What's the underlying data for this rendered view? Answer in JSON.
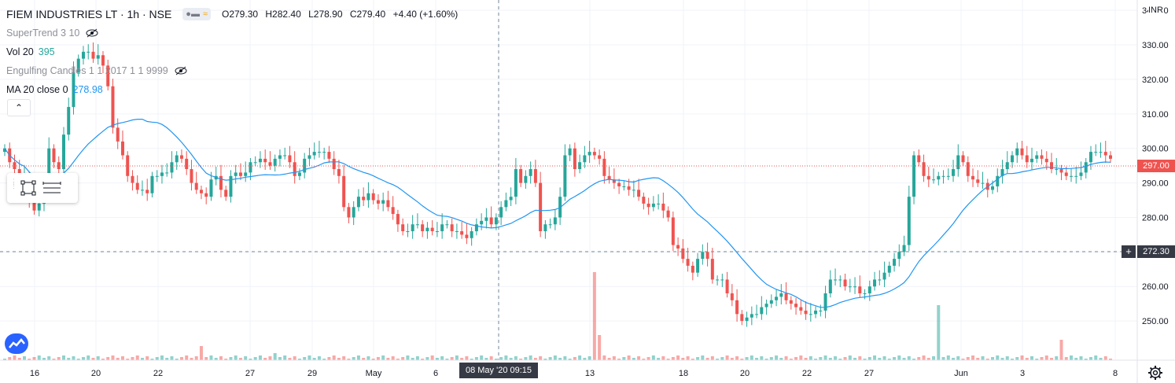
{
  "header": {
    "symbol": "FIEM INDUSTRIES LT · 1h · NSE",
    "open": "O279.30",
    "high": "H282.40",
    "low": "L278.90",
    "close": "C279.40",
    "change": "+4.40 (+1.60%)",
    "up_color": "#26a69a",
    "down_color": "#ef5350"
  },
  "indicators": [
    {
      "name": "SuperTrend 3 10",
      "value": "",
      "hidden": true
    },
    {
      "name": "Vol 20",
      "value": "395",
      "hidden": false,
      "value_color": "#26a69a"
    },
    {
      "name": "Engulfing Candles 1 1 2017 1 1 9999",
      "value": "",
      "hidden": true
    },
    {
      "name": "MA 20 close 0",
      "value": "278.98",
      "hidden": false,
      "value_color": "#2196f3"
    }
  ],
  "price_axis": {
    "currency": "INR",
    "ticks": [
      "340.00",
      "330.00",
      "320.00",
      "310.00",
      "300.00",
      "290.00",
      "280.00",
      "270.00",
      "260.00",
      "250.00"
    ],
    "current_price": "297.00",
    "crosshair_price": "272.30"
  },
  "time_axis": {
    "ticks": [
      "16",
      "20",
      "22",
      "27",
      "29",
      "May",
      "6",
      "08 May '20",
      "13",
      "18",
      "20",
      "22",
      "27",
      "Jun",
      "3",
      "8"
    ],
    "crosshair_time": "08 May '20   09:15"
  },
  "icons": {
    "settings": "gear-icon",
    "logo": "tradingview-logo-icon",
    "rectangle_tool": "rectangle-tool-icon",
    "menu": "menu-lines-icon",
    "collapse": "chevron-up-icon"
  },
  "chart_data": {
    "type": "candlestick",
    "ylim": [
      240,
      343
    ],
    "ma_color": "#2196f3",
    "ma_label": "MA 20",
    "closes": [
      300,
      296,
      294,
      292,
      292,
      285,
      282,
      284,
      288,
      300,
      296,
      294,
      304,
      312,
      322,
      326,
      328,
      328,
      326,
      327,
      324,
      318,
      306,
      302,
      298,
      292,
      290,
      288,
      288,
      287,
      292,
      292,
      293,
      293,
      296,
      298,
      297,
      294,
      290,
      288,
      287,
      286,
      291,
      292,
      288,
      286,
      292,
      293,
      292,
      293,
      296,
      296,
      297,
      296,
      295,
      297,
      298,
      298,
      296,
      292,
      293,
      297,
      298,
      299,
      299,
      299,
      297,
      294,
      292,
      283,
      280,
      283,
      286,
      285,
      287,
      285,
      284,
      285,
      283,
      281,
      278,
      276,
      276,
      278,
      278,
      276,
      277,
      276,
      276,
      278,
      278,
      276,
      276,
      275,
      274,
      276,
      278,
      279,
      280,
      278,
      280,
      283,
      285,
      286,
      294,
      290,
      292,
      294,
      290,
      276,
      278,
      278,
      280,
      286,
      298,
      300,
      294,
      296,
      298,
      299,
      298,
      297,
      292,
      291,
      290,
      289,
      289,
      288,
      288,
      286,
      284,
      283,
      284,
      284,
      282,
      280,
      272,
      271,
      268,
      266,
      264,
      268,
      270,
      268,
      262,
      262,
      262,
      258,
      256,
      252,
      250,
      251,
      252,
      252,
      254,
      255,
      256,
      257,
      258,
      256,
      255,
      254,
      253,
      252,
      252,
      253,
      253,
      258,
      262,
      262,
      262,
      260,
      260,
      260,
      258,
      258,
      260,
      262,
      262,
      264,
      266,
      268,
      270,
      272,
      286,
      298,
      296,
      292,
      291,
      291,
      292,
      292,
      292,
      294,
      298,
      296,
      292,
      291,
      290,
      290,
      288,
      289,
      292,
      294,
      296,
      298,
      300,
      298,
      296,
      297,
      298,
      297,
      296,
      294,
      294,
      293,
      292,
      292,
      292,
      293,
      296,
      299,
      299,
      299,
      298,
      297
    ]
  }
}
